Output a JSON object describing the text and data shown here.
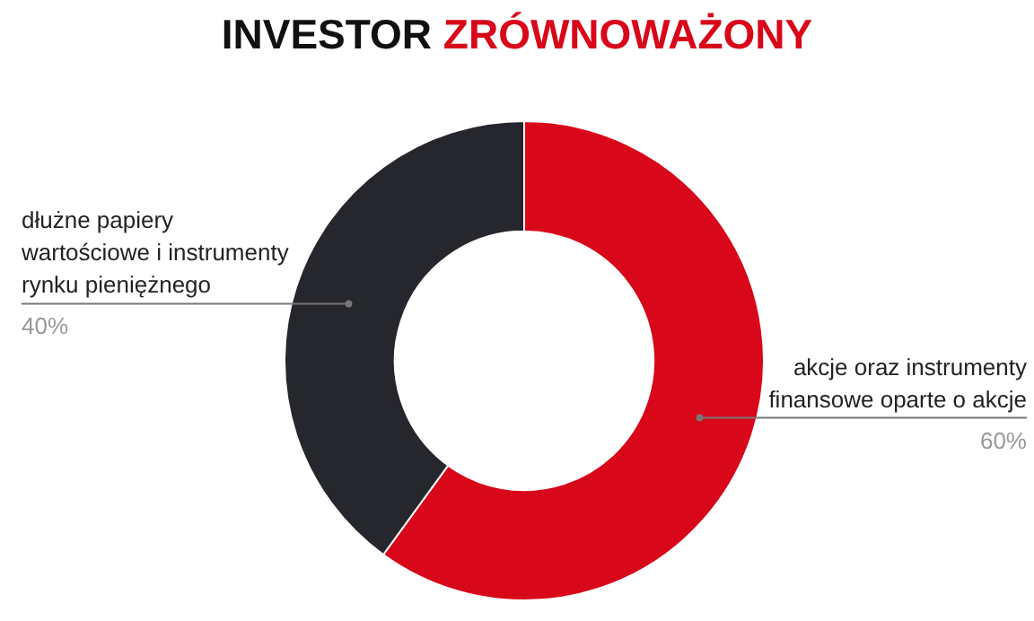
{
  "chart_data": {
    "type": "donut",
    "title": "INVESTOR ZRÓWNOWAŻONY",
    "categories": [
      "akcje oraz instrumenty finansowe oparte o akcje",
      "dłużne papiery wartościowe i instrumenty rynku pieniężnego"
    ],
    "values": [
      60,
      40
    ],
    "colors": [
      "#d80719",
      "#26272c"
    ],
    "value_labels": [
      "60%",
      "40%"
    ]
  }
}
